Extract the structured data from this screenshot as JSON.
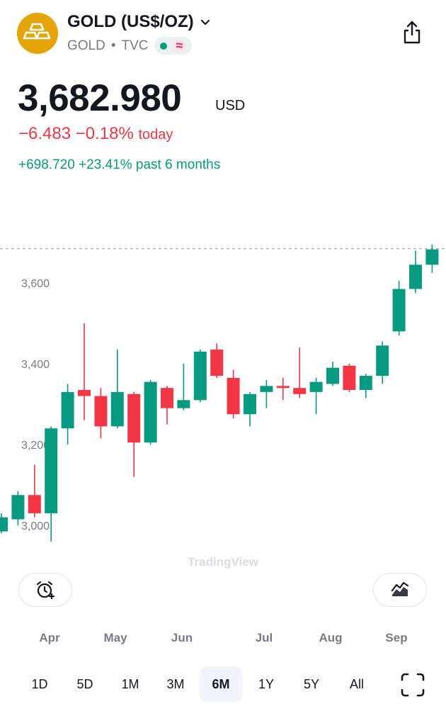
{
  "header": {
    "symbol_title": "GOLD (US$/OZ)",
    "ticker": "GOLD",
    "exchange": "TVC",
    "separator": "•",
    "chevron": "chevron-down-icon",
    "share": "share-icon"
  },
  "quote": {
    "price": "3,682.980",
    "currency": "USD",
    "change": "−6.483",
    "change_pct": "−0.18%",
    "change_label": "today",
    "change6m": "+698.720",
    "change6m_pct": "+23.41%",
    "change6m_label": "past 6 months"
  },
  "colors": {
    "up": "#089981",
    "down": "#f23645",
    "logo": "#e5a50a"
  },
  "chart_data": {
    "type": "candlestick",
    "y_ticks": [
      "3,600",
      "3,400",
      "3,200",
      "3,000"
    ],
    "y_tick_values": [
      3600,
      3400,
      3200,
      3000
    ],
    "ylim": [
      2940,
      3700
    ],
    "current_price": 3682.98,
    "watermark": "TradingView",
    "x_ticks": [
      "Apr",
      "May",
      "Jun",
      "Jul",
      "Aug",
      "Sep"
    ],
    "candles": [
      {
        "o": 2985,
        "c": 3020,
        "h": 3030,
        "l": 2980
      },
      {
        "o": 3015,
        "c": 3075,
        "h": 3085,
        "l": 3000
      },
      {
        "o": 3075,
        "c": 3030,
        "h": 3150,
        "l": 3020
      },
      {
        "o": 3030,
        "c": 3240,
        "h": 3245,
        "l": 2960
      },
      {
        "o": 3240,
        "c": 3330,
        "h": 3350,
        "l": 3200
      },
      {
        "o": 3335,
        "c": 3320,
        "h": 3500,
        "l": 3260
      },
      {
        "o": 3320,
        "c": 3245,
        "h": 3340,
        "l": 3215
      },
      {
        "o": 3245,
        "c": 3330,
        "h": 3435,
        "l": 3240
      },
      {
        "o": 3325,
        "c": 3205,
        "h": 3330,
        "l": 3120
      },
      {
        "o": 3205,
        "c": 3355,
        "h": 3360,
        "l": 3200
      },
      {
        "o": 3340,
        "c": 3290,
        "h": 3345,
        "l": 3250
      },
      {
        "o": 3290,
        "c": 3310,
        "h": 3400,
        "l": 3285
      },
      {
        "o": 3310,
        "c": 3430,
        "h": 3435,
        "l": 3305
      },
      {
        "o": 3435,
        "c": 3370,
        "h": 3450,
        "l": 3365
      },
      {
        "o": 3365,
        "c": 3275,
        "h": 3385,
        "l": 3265
      },
      {
        "o": 3275,
        "c": 3325,
        "h": 3330,
        "l": 3245
      },
      {
        "o": 3330,
        "c": 3345,
        "h": 3360,
        "l": 3290
      },
      {
        "o": 3345,
        "c": 3340,
        "h": 3365,
        "l": 3310
      },
      {
        "o": 3340,
        "c": 3325,
        "h": 3440,
        "l": 3315
      },
      {
        "o": 3330,
        "c": 3355,
        "h": 3365,
        "l": 3275
      },
      {
        "o": 3350,
        "c": 3390,
        "h": 3405,
        "l": 3345
      },
      {
        "o": 3395,
        "c": 3335,
        "h": 3400,
        "l": 3330
      },
      {
        "o": 3335,
        "c": 3370,
        "h": 3375,
        "l": 3315
      },
      {
        "o": 3370,
        "c": 3445,
        "h": 3455,
        "l": 3350
      },
      {
        "o": 3480,
        "c": 3585,
        "h": 3605,
        "l": 3470
      },
      {
        "o": 3585,
        "c": 3645,
        "h": 3680,
        "l": 3575
      },
      {
        "o": 3645,
        "c": 3683,
        "h": 3695,
        "l": 3625
      }
    ]
  },
  "controls": {
    "alert": "alarm-add-icon",
    "chart_type": "chart-type-icon",
    "fullscreen": "fullscreen-icon",
    "ranges": [
      "1D",
      "5D",
      "1M",
      "3M",
      "6M",
      "1Y",
      "5Y",
      "All"
    ],
    "active_range": "6M"
  }
}
